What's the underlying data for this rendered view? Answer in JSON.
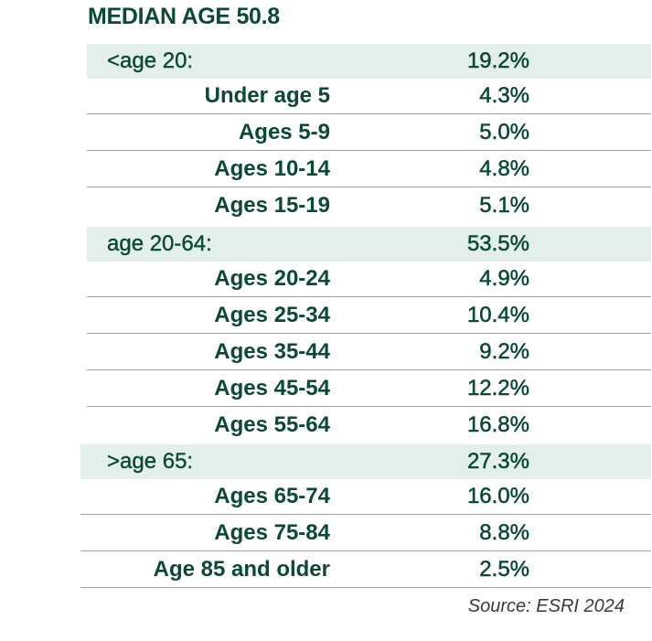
{
  "title": "MEDIAN AGE 50.8",
  "groups": [
    {
      "label": "<age 20:",
      "value": "19.2%",
      "rows": [
        {
          "label": "Under age 5",
          "value": "4.3%"
        },
        {
          "label": "Ages 5-9",
          "value": "5.0%"
        },
        {
          "label": "Ages 10-14",
          "value": "4.8%"
        },
        {
          "label": "Ages 15-19",
          "value": "5.1%"
        }
      ]
    },
    {
      "label": "age 20-64:",
      "value": "53.5%",
      "rows": [
        {
          "label": "Ages 20-24",
          "value": "4.9%"
        },
        {
          "label": "Ages 25-34",
          "value": "10.4%"
        },
        {
          "label": "Ages 35-44",
          "value": "9.2%"
        },
        {
          "label": "Ages 45-54",
          "value": "12.2%"
        },
        {
          "label": "Ages 55-64",
          "value": "16.8%"
        }
      ]
    },
    {
      "label": ">age 65:",
      "value": "27.3%",
      "rows": [
        {
          "label": "Ages 65-74",
          "value": "16.0%"
        },
        {
          "label": "Ages 75-84",
          "value": "8.8%"
        },
        {
          "label": "Age 85 and older",
          "value": "2.5%"
        }
      ]
    }
  ],
  "source": "Source: ESRI 2024"
}
